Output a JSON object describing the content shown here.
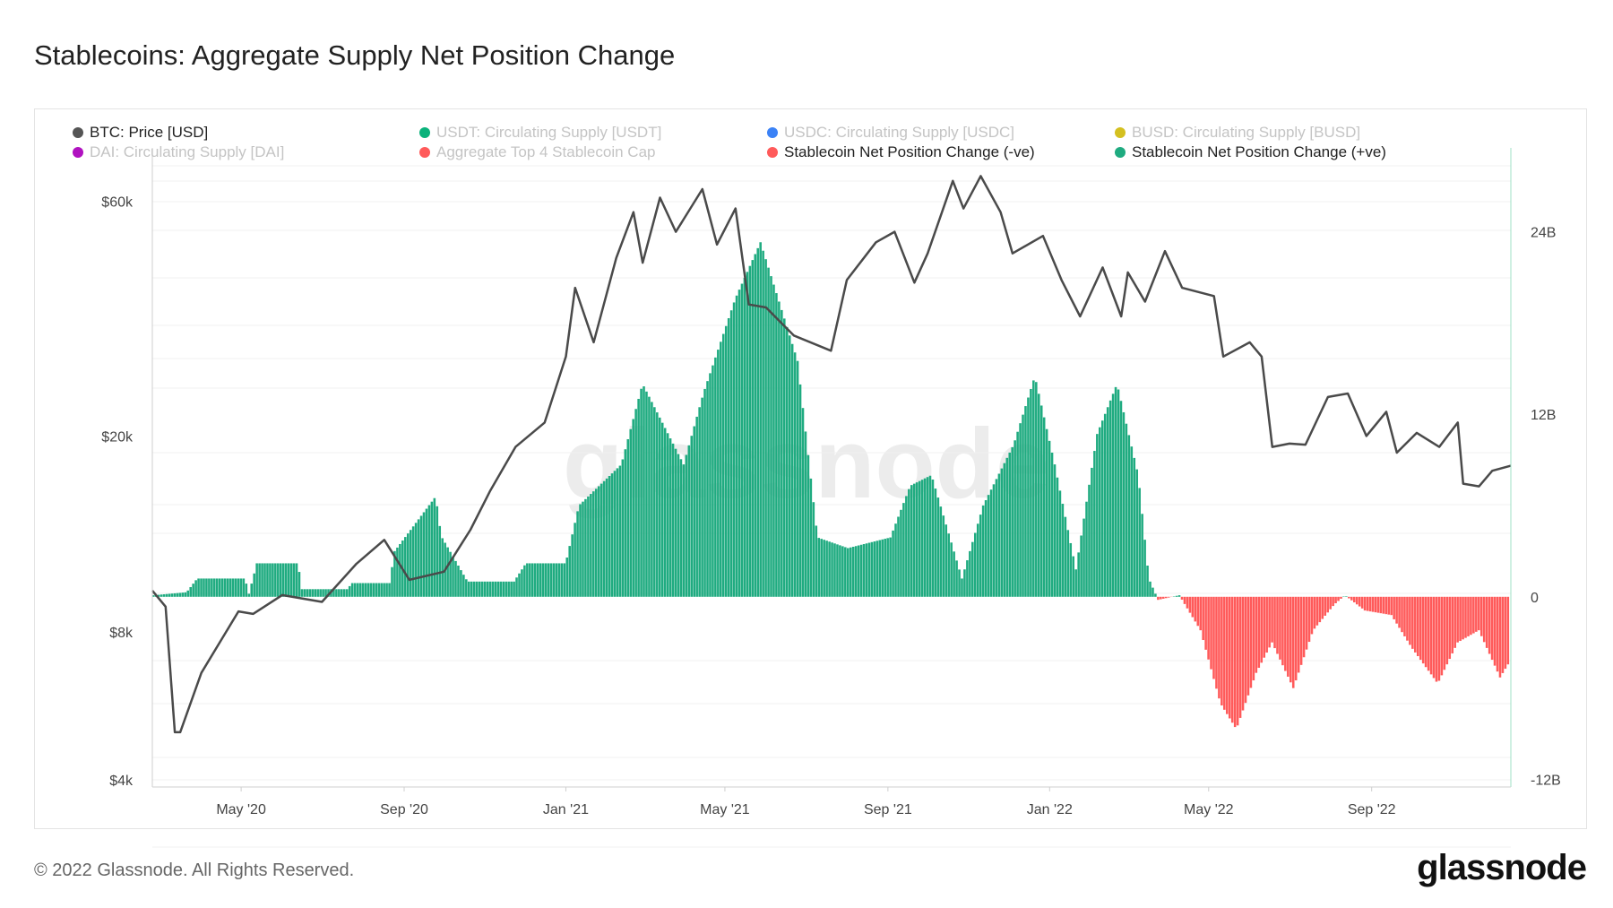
{
  "title": "Stablecoins: Aggregate Supply Net Position Change",
  "footer": "© 2022 Glassnode. All Rights Reserved.",
  "logo": "glassnode",
  "watermark": "glassnode",
  "legend": [
    {
      "label": "BTC: Price [USD]",
      "color": "#555555",
      "active": true
    },
    {
      "label": "USDT: Circulating Supply [USDT]",
      "color": "#0ab27b",
      "active": false
    },
    {
      "label": "USDC: Circulating Supply [USDC]",
      "color": "#3b82f6",
      "active": false
    },
    {
      "label": "BUSD: Circulating Supply [BUSD]",
      "color": "#d4c020",
      "active": false
    },
    {
      "label": "DAI: Circulating Supply [DAI]",
      "color": "#b012c0",
      "active": false
    },
    {
      "label": "Aggregate Top 4 Stablecoin Cap",
      "color": "#ff5a5a",
      "active": false
    },
    {
      "label": "Stablecoin Net Position Change (-ve)",
      "color": "#ff5a5a",
      "active": true
    },
    {
      "label": "Stablecoin Net Position Change (+ve)",
      "color": "#1fab80",
      "active": true
    }
  ],
  "chart_data": {
    "type": "line+bar",
    "title": "Stablecoins: Aggregate Supply Net Position Change",
    "x_range": [
      "2020-02-24",
      "2022-12-15"
    ],
    "x_ticks": [
      {
        "date": "2020-05-01",
        "label": "May '20"
      },
      {
        "date": "2020-09-01",
        "label": "Sep '20"
      },
      {
        "date": "2021-01-01",
        "label": "Jan '21"
      },
      {
        "date": "2021-05-01",
        "label": "May '21"
      },
      {
        "date": "2021-09-01",
        "label": "Sep '21"
      },
      {
        "date": "2022-01-01",
        "label": "Jan '22"
      },
      {
        "date": "2022-05-01",
        "label": "May '22"
      },
      {
        "date": "2022-09-01",
        "label": "Sep '22"
      }
    ],
    "y_left": {
      "scale": "log",
      "ylim": [
        3870,
        77000
      ],
      "ticks": [
        {
          "v": 60000,
          "label": "$60k"
        },
        {
          "v": 20000,
          "label": "$20k"
        },
        {
          "v": 8000,
          "label": "$8k"
        },
        {
          "v": 4000,
          "label": "$4k"
        }
      ]
    },
    "y_right": {
      "scale": "linear",
      "unit": "B",
      "ylim": [
        -12.5,
        29.5
      ],
      "ticks": [
        {
          "v": 24,
          "label": "24B"
        },
        {
          "v": 12,
          "label": "12B"
        },
        {
          "v": 0,
          "label": "0"
        },
        {
          "v": -12,
          "label": "-12B"
        }
      ]
    },
    "grid": true,
    "legend_position": "top",
    "series": [
      {
        "name": "BTC: Price [USD]",
        "type": "line",
        "axis": "left",
        "color": "#4a4a4a",
        "points": [
          [
            "2020-02-24",
            9700
          ],
          [
            "2020-03-05",
            9000
          ],
          [
            "2020-03-12",
            5000
          ],
          [
            "2020-03-16",
            5000
          ],
          [
            "2020-04-01",
            6600
          ],
          [
            "2020-04-29",
            8800
          ],
          [
            "2020-05-10",
            8700
          ],
          [
            "2020-06-01",
            9500
          ],
          [
            "2020-07-01",
            9200
          ],
          [
            "2020-07-27",
            11000
          ],
          [
            "2020-08-17",
            12300
          ],
          [
            "2020-09-05",
            10200
          ],
          [
            "2020-10-01",
            10600
          ],
          [
            "2020-10-21",
            12900
          ],
          [
            "2020-11-05",
            15500
          ],
          [
            "2020-11-24",
            19000
          ],
          [
            "2020-12-16",
            21300
          ],
          [
            "2021-01-01",
            29000
          ],
          [
            "2021-01-08",
            40000
          ],
          [
            "2021-01-22",
            31000
          ],
          [
            "2021-02-08",
            46000
          ],
          [
            "2021-02-21",
            57000
          ],
          [
            "2021-02-28",
            45000
          ],
          [
            "2021-03-13",
            61000
          ],
          [
            "2021-03-25",
            52000
          ],
          [
            "2021-04-14",
            63500
          ],
          [
            "2021-04-25",
            49000
          ],
          [
            "2021-05-09",
            58000
          ],
          [
            "2021-05-19",
            37000
          ],
          [
            "2021-06-01",
            36500
          ],
          [
            "2021-06-22",
            32000
          ],
          [
            "2021-07-20",
            29800
          ],
          [
            "2021-08-01",
            41500
          ],
          [
            "2021-08-23",
            49500
          ],
          [
            "2021-09-06",
            52000
          ],
          [
            "2021-09-21",
            41000
          ],
          [
            "2021-10-01",
            47000
          ],
          [
            "2021-10-20",
            66000
          ],
          [
            "2021-10-28",
            58000
          ],
          [
            "2021-11-10",
            67500
          ],
          [
            "2021-11-25",
            57000
          ],
          [
            "2021-12-04",
            47000
          ],
          [
            "2021-12-27",
            51000
          ],
          [
            "2022-01-10",
            41500
          ],
          [
            "2022-01-24",
            35000
          ],
          [
            "2022-02-10",
            44000
          ],
          [
            "2022-02-24",
            35000
          ],
          [
            "2022-03-01",
            43000
          ],
          [
            "2022-03-14",
            37500
          ],
          [
            "2022-03-29",
            47500
          ],
          [
            "2022-04-11",
            40000
          ],
          [
            "2022-05-05",
            38500
          ],
          [
            "2022-05-12",
            29000
          ],
          [
            "2022-06-01",
            31000
          ],
          [
            "2022-06-10",
            29000
          ],
          [
            "2022-06-18",
            19000
          ],
          [
            "2022-07-01",
            19300
          ],
          [
            "2022-07-13",
            19200
          ],
          [
            "2022-07-30",
            24000
          ],
          [
            "2022-08-14",
            24400
          ],
          [
            "2022-08-28",
            20000
          ],
          [
            "2022-09-12",
            22400
          ],
          [
            "2022-09-20",
            18500
          ],
          [
            "2022-10-05",
            20300
          ],
          [
            "2022-10-22",
            19000
          ],
          [
            "2022-11-05",
            21300
          ],
          [
            "2022-11-09",
            16000
          ],
          [
            "2022-11-21",
            15800
          ],
          [
            "2022-12-01",
            17000
          ],
          [
            "2022-12-15",
            17400
          ]
        ]
      },
      {
        "name": "Stablecoin Net Position Change",
        "type": "bar",
        "axis": "right",
        "unit": "B",
        "positive_color": "#1fab80",
        "negative_color": "#ff5a5a",
        "points": [
          [
            "2020-02-24",
            0.1
          ],
          [
            "2020-03-20",
            0.3
          ],
          [
            "2020-03-28",
            1.2
          ],
          [
            "2020-05-03",
            1.2
          ],
          [
            "2020-05-06",
            0.2
          ],
          [
            "2020-05-12",
            2.2
          ],
          [
            "2020-06-12",
            2.2
          ],
          [
            "2020-06-15",
            0.5
          ],
          [
            "2020-07-20",
            0.5
          ],
          [
            "2020-07-22",
            0.9
          ],
          [
            "2020-08-20",
            0.9
          ],
          [
            "2020-08-24",
            3.0
          ],
          [
            "2020-09-24",
            6.6
          ],
          [
            "2020-09-28",
            4.0
          ],
          [
            "2020-10-08",
            2.5
          ],
          [
            "2020-10-18",
            1.0
          ],
          [
            "2020-11-22",
            1.0
          ],
          [
            "2020-12-01",
            2.2
          ],
          [
            "2020-12-31",
            2.2
          ],
          [
            "2021-01-10",
            6.0
          ],
          [
            "2021-02-11",
            8.7
          ],
          [
            "2021-02-27",
            14.0
          ],
          [
            "2021-03-30",
            8.7
          ],
          [
            "2021-04-14",
            13.4
          ],
          [
            "2021-05-08",
            19.6
          ],
          [
            "2021-05-27",
            23.3
          ],
          [
            "2021-06-24",
            15.5
          ],
          [
            "2021-07-09",
            3.9
          ],
          [
            "2021-08-01",
            3.2
          ],
          [
            "2021-09-02",
            3.9
          ],
          [
            "2021-09-17",
            7.3
          ],
          [
            "2021-10-03",
            8.0
          ],
          [
            "2021-10-26",
            1.2
          ],
          [
            "2021-11-11",
            6.0
          ],
          [
            "2021-12-04",
            10.0
          ],
          [
            "2021-12-20",
            14.5
          ],
          [
            "2022-01-04",
            8.7
          ],
          [
            "2022-01-20",
            1.8
          ],
          [
            "2022-02-05",
            10.7
          ],
          [
            "2022-02-20",
            14.0
          ],
          [
            "2022-03-08",
            8.0
          ],
          [
            "2022-03-16",
            1.2
          ],
          [
            "2022-03-23",
            -0.2
          ],
          [
            "2022-04-08",
            0.1
          ],
          [
            "2022-04-24",
            -2.2
          ],
          [
            "2022-05-09",
            -7.0
          ],
          [
            "2022-05-21",
            -8.7
          ],
          [
            "2022-06-05",
            -5.0
          ],
          [
            "2022-06-17",
            -3.0
          ],
          [
            "2022-07-03",
            -6.0
          ],
          [
            "2022-07-18",
            -2.2
          ],
          [
            "2022-08-03",
            -0.5
          ],
          [
            "2022-08-11",
            0.1
          ],
          [
            "2022-08-26",
            -0.9
          ],
          [
            "2022-09-15",
            -1.2
          ],
          [
            "2022-09-30",
            -3.3
          ],
          [
            "2022-10-20",
            -5.7
          ],
          [
            "2022-11-04",
            -3.0
          ],
          [
            "2022-11-20",
            -2.2
          ],
          [
            "2022-12-06",
            -5.3
          ],
          [
            "2022-12-13",
            -4.3
          ]
        ]
      }
    ]
  }
}
